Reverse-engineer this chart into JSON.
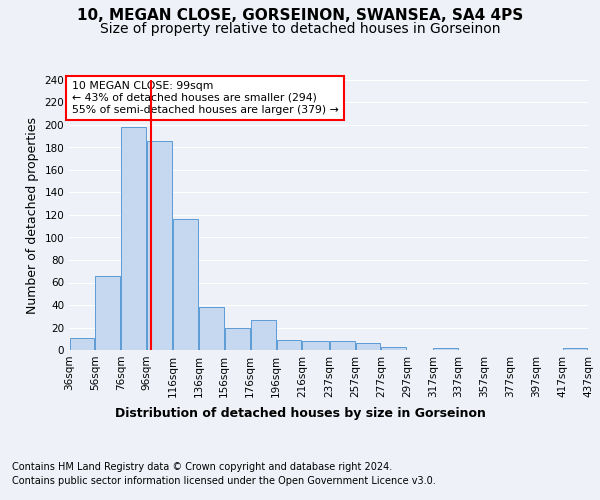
{
  "title": "10, MEGAN CLOSE, GORSEINON, SWANSEA, SA4 4PS",
  "subtitle": "Size of property relative to detached houses in Gorseinon",
  "xlabel_bottom": "Distribution of detached houses by size in Gorseinon",
  "ylabel": "Number of detached properties",
  "bar_color": "#c5d8f0",
  "bar_edge_color": "#5b9bd5",
  "vline_x": 99,
  "vline_color": "red",
  "annotation_title": "10 MEGAN CLOSE: 99sqm",
  "annotation_line1": "← 43% of detached houses are smaller (294)",
  "annotation_line2": "55% of semi-detached houses are larger (379) →",
  "annotation_box_color": "white",
  "annotation_box_edge": "red",
  "bin_edges": [
    36,
    56,
    76,
    96,
    116,
    136,
    156,
    176,
    196,
    216,
    237,
    257,
    277,
    297,
    317,
    337,
    357,
    377,
    397,
    417,
    437
  ],
  "bar_heights": [
    11,
    66,
    198,
    186,
    116,
    38,
    20,
    27,
    9,
    8,
    8,
    6,
    3,
    0,
    2,
    0,
    0,
    0,
    0,
    2
  ],
  "ylim": [
    0,
    240
  ],
  "yticks": [
    0,
    20,
    40,
    60,
    80,
    100,
    120,
    140,
    160,
    180,
    200,
    220,
    240
  ],
  "footer_line1": "Contains HM Land Registry data © Crown copyright and database right 2024.",
  "footer_line2": "Contains public sector information licensed under the Open Government Licence v3.0.",
  "bg_color": "#eef2f8",
  "grid_color": "#ffffff",
  "title_fontsize": 11,
  "subtitle_fontsize": 10,
  "tick_label_fontsize": 7.5,
  "ylabel_fontsize": 9,
  "xlabel_fontsize": 9,
  "footer_fontsize": 7
}
